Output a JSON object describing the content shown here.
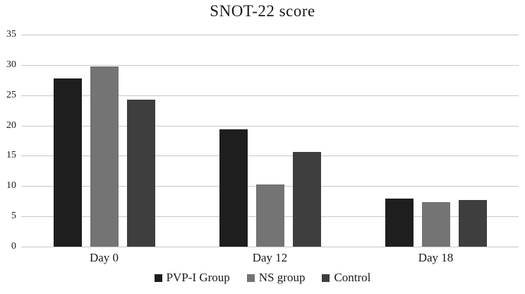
{
  "chart_data": {
    "type": "bar",
    "title": "SNOT-22 score",
    "categories": [
      "Day 0",
      "Day 12",
      "Day 18"
    ],
    "series": [
      {
        "name": "PVP-I Group",
        "color": "#1e1e1e",
        "values": [
          27.8,
          19.4,
          7.9
        ]
      },
      {
        "name": "NS group",
        "color": "#747474",
        "values": [
          29.8,
          10.3,
          7.3
        ]
      },
      {
        "name": "Control",
        "color": "#3e3e3e",
        "values": [
          24.3,
          15.6,
          7.7
        ]
      }
    ],
    "xlabel": "",
    "ylabel": "",
    "ylim": [
      0,
      35
    ],
    "yticks": [
      35,
      30,
      25,
      20,
      15,
      10,
      5,
      0
    ],
    "grid": true,
    "legend_position": "bottom"
  },
  "colors": {
    "gridline": "#c8c8c8",
    "text": "#1a1a1a",
    "background": "#ffffff"
  }
}
